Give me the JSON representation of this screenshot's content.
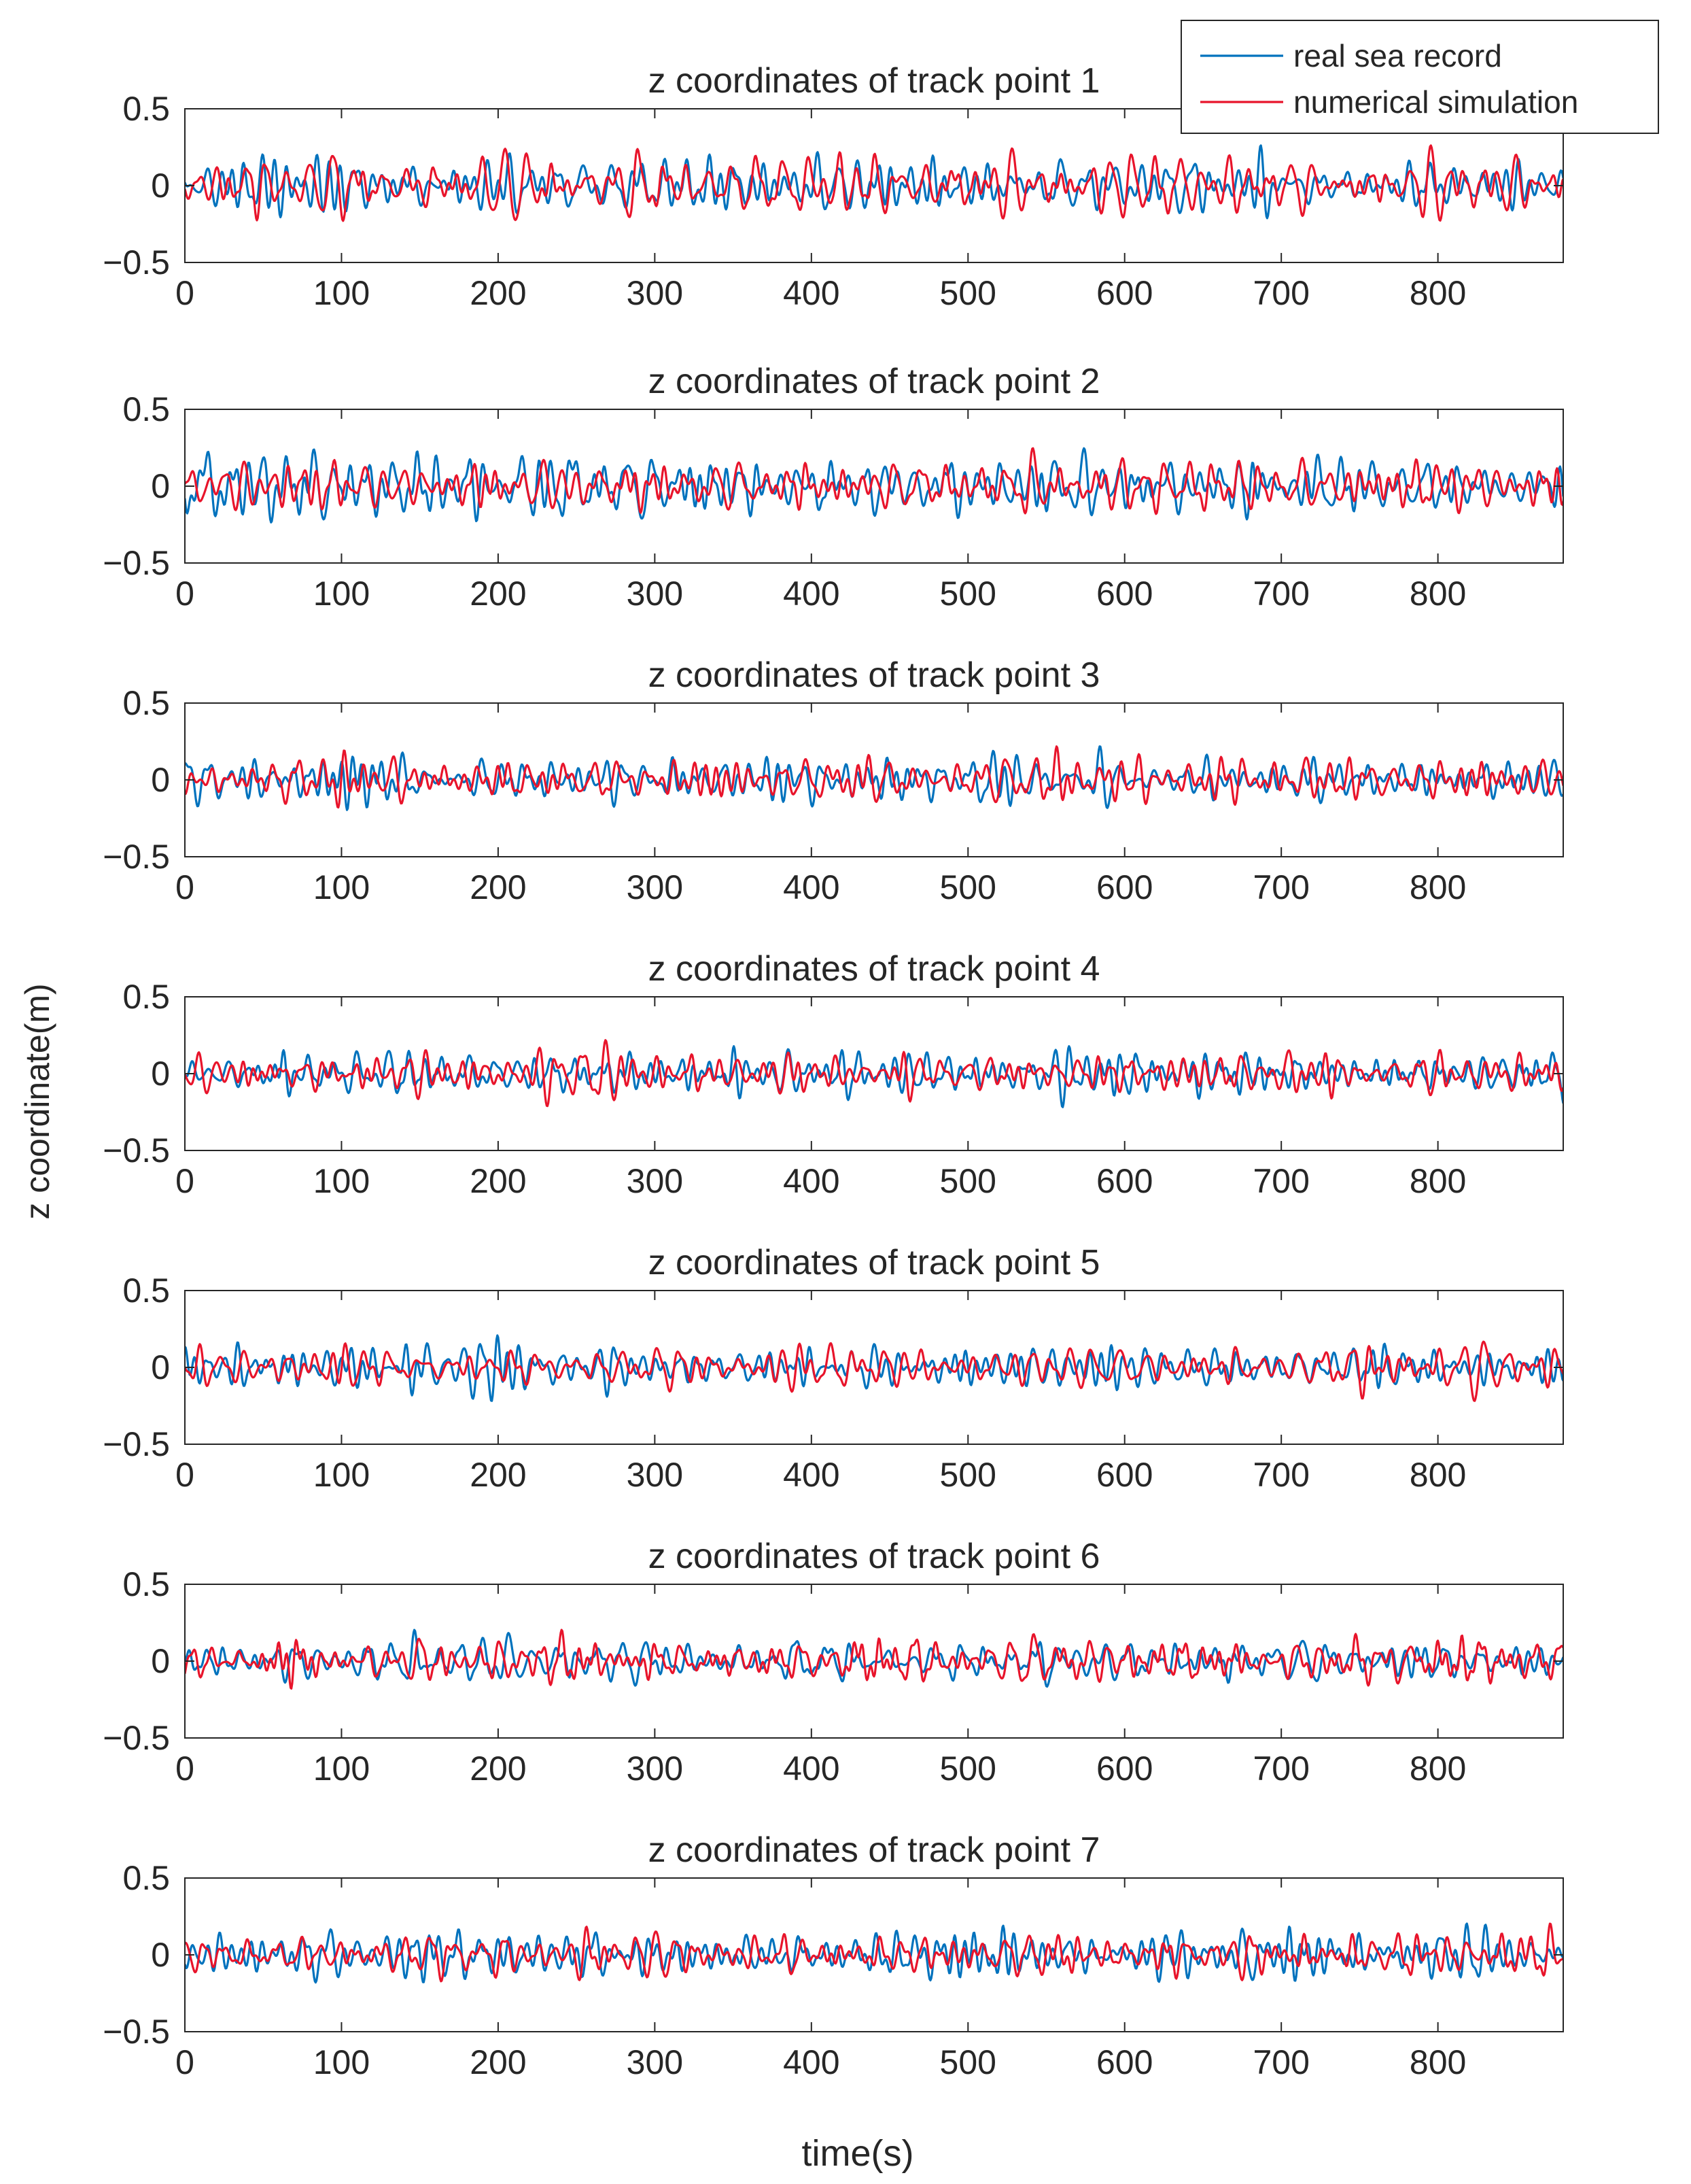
{
  "chart_data": {
    "type": "line",
    "ylabel": "z coordinate(m)",
    "xlabel": "time(s)",
    "xlim": [
      0,
      880
    ],
    "ylim": [
      -0.5,
      0.5
    ],
    "x_ticks": [
      0,
      100,
      200,
      300,
      400,
      500,
      600,
      700,
      800
    ],
    "y_ticks": [
      -0.5,
      0,
      0.5
    ],
    "y_tick_labels": [
      "−0.5",
      "0",
      "0.5"
    ],
    "legend": {
      "placement": "top-right",
      "entries": [
        {
          "name": "real sea record",
          "color": "#0072BD"
        },
        {
          "name": "numerical simulation",
          "color": "#E8142B"
        }
      ]
    },
    "series_note": "Irregular wave elevation time series, amplitude mostly within about ±0.25 m, two series per panel (real sea record vs numerical simulation), sampled over 0–880 s.",
    "panels": [
      {
        "title": "z coordinates of track point 1",
        "amplitude": 0.18,
        "seed": 11
      },
      {
        "title": "z coordinates of track point 2",
        "amplitude": 0.17,
        "seed": 23
      },
      {
        "title": "z coordinates of track point 3",
        "amplitude": 0.15,
        "seed": 37
      },
      {
        "title": "z coordinates of track point 4",
        "amplitude": 0.15,
        "seed": 41
      },
      {
        "title": "z coordinates of track point 5",
        "amplitude": 0.15,
        "seed": 53
      },
      {
        "title": "z coordinates of track point 6",
        "amplitude": 0.14,
        "seed": 67
      },
      {
        "title": "z coordinates of track point 7",
        "amplitude": 0.14,
        "seed": 79
      }
    ]
  }
}
